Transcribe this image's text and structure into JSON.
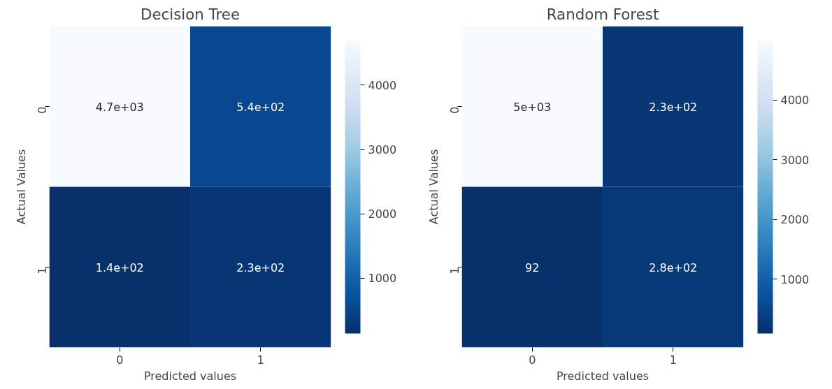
{
  "chart_data": [
    {
      "type": "heatmap",
      "title": "Decision Tree",
      "xlabel": "Predicted values",
      "ylabel": "Actual Values",
      "categories": [
        "0",
        "1"
      ],
      "y_categories": [
        "0",
        "1"
      ],
      "cells": [
        [
          4700,
          540
        ],
        [
          140,
          230
        ]
      ],
      "cell_labels": [
        [
          "4.7e+03",
          "5.4e+02"
        ],
        [
          "1.4e+02",
          "2.3e+02"
        ]
      ],
      "clim": [
        140,
        4700
      ],
      "cticks": [
        1000,
        2000,
        3000,
        4000
      ]
    },
    {
      "type": "heatmap",
      "title": "Random Forest",
      "xlabel": "Predicted values",
      "ylabel": "Actual Values",
      "categories": [
        "0",
        "1"
      ],
      "y_categories": [
        "0",
        "1"
      ],
      "cells": [
        [
          5000,
          230
        ],
        [
          92,
          280
        ]
      ],
      "cell_labels": [
        [
          "5e+03",
          "2.3e+02"
        ],
        [
          "92",
          "2.8e+02"
        ]
      ],
      "clim": [
        92,
        5000
      ],
      "cticks": [
        1000,
        2000,
        3000,
        4000
      ]
    }
  ]
}
